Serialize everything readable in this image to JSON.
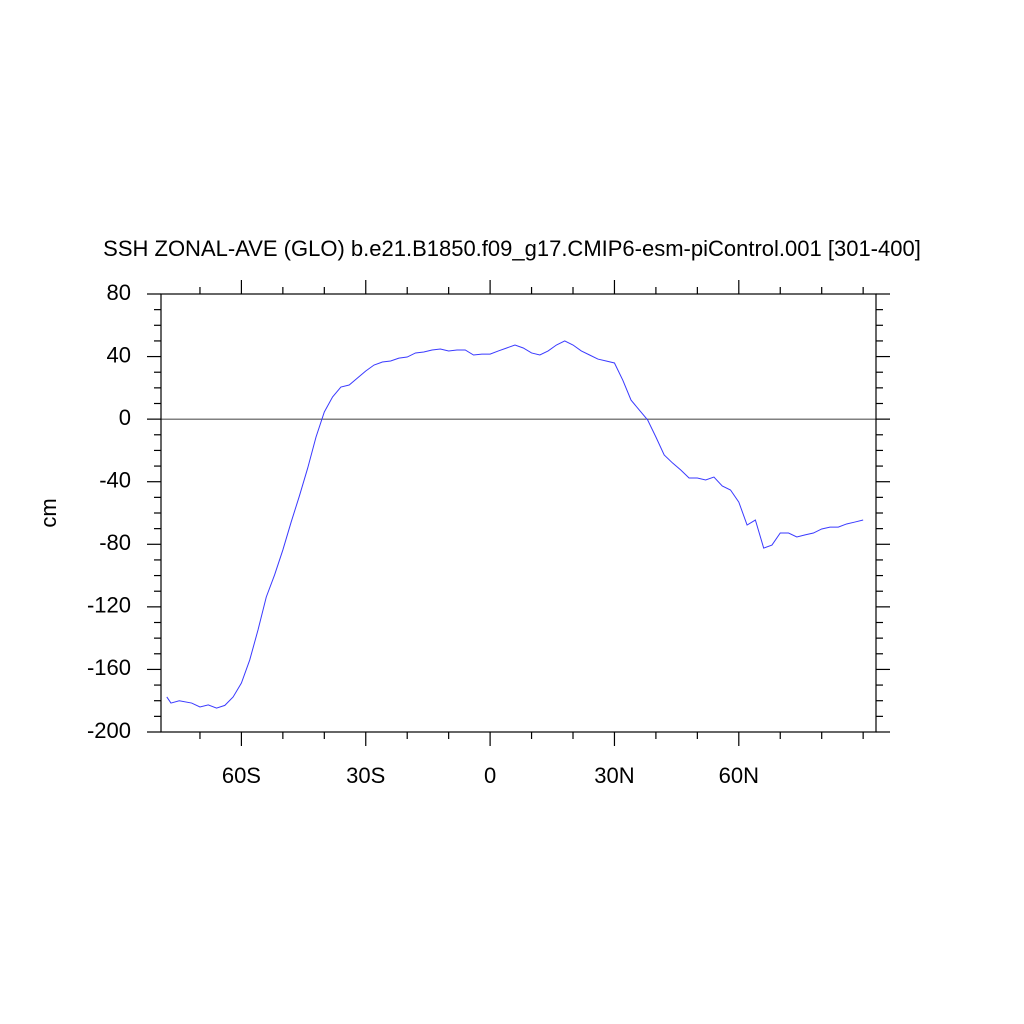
{
  "chart_data": {
    "type": "line",
    "title": "SSH ZONAL-AVE (GLO) b.e21.B1850.f09_g17.CMIP6-esm-piControl.001 [301-400]",
    "y_label": "cm",
    "x": [
      -78,
      -77,
      -75,
      -72,
      -70,
      -68,
      -66,
      -64,
      -62,
      -60,
      -58,
      -56,
      -54,
      -52,
      -50,
      -48,
      -46,
      -44,
      -42,
      -40,
      -38,
      -36,
      -34,
      -32,
      -30,
      -28,
      -26,
      -24,
      -22,
      -20,
      -18,
      -16,
      -14,
      -12,
      -10,
      -8,
      -6,
      -4,
      -2,
      0,
      2,
      4,
      6,
      8,
      10,
      12,
      14,
      16,
      18,
      20,
      22,
      24,
      26,
      28,
      30,
      32,
      34,
      36,
      38,
      40,
      42,
      44,
      46,
      48,
      50,
      52,
      54,
      56,
      58,
      60,
      62,
      64,
      66,
      68,
      70,
      72,
      74,
      76,
      78,
      80,
      82,
      84,
      86,
      88,
      90
    ],
    "series": [
      {
        "color": "#3a3aff",
        "values": [
          -177.6,
          -181.5,
          -180,
          -181.5,
          -184,
          -182.7,
          -184.7,
          -183,
          -177.6,
          -168.7,
          -154,
          -134.8,
          -113.7,
          -99.6,
          -83.6,
          -65.8,
          -49,
          -31.2,
          -11.4,
          4.6,
          14.2,
          20.5,
          21.8,
          26.3,
          30.8,
          34.6,
          36.5,
          37.2,
          39,
          39.7,
          42.3,
          42.9,
          44.2,
          44.8,
          43.6,
          44.2,
          44.2,
          41,
          41.6,
          41.6,
          43.6,
          45.5,
          47.4,
          45.5,
          42.3,
          41,
          43.6,
          47.4,
          50,
          47.4,
          43.6,
          41,
          38.4,
          37.2,
          35.9,
          25,
          12.2,
          5.8,
          -0.5,
          -11.4,
          -22.9,
          -28,
          -32.5,
          -37.6,
          -37.6,
          -38.9,
          -37,
          -42.7,
          -45.3,
          -53,
          -67.7,
          -64.5,
          -82.4,
          -80.5,
          -72.8,
          -72.8,
          -75.3,
          -74,
          -72.8,
          -70.2,
          -69,
          -69,
          -67,
          -65.8,
          -64.5
        ]
      }
    ],
    "xlim": [
      -79.4,
      93.1
    ],
    "ylim": [
      -200,
      80
    ],
    "xticks": [
      {
        "value": -60,
        "label": "60S"
      },
      {
        "value": -30,
        "label": "30S"
      },
      0,
      {
        "value": 30,
        "label": "30N"
      },
      {
        "value": 60,
        "label": "60N"
      }
    ],
    "yticks": [
      -200,
      -160,
      -120,
      -80,
      -40,
      0,
      40,
      80
    ],
    "xminorticks": [
      -70,
      -50,
      -40,
      -20,
      -10,
      10,
      20,
      40,
      50,
      70,
      80,
      90
    ],
    "yminorticks": [
      -190,
      -180,
      -170,
      -150,
      -140,
      -130,
      -110,
      -100,
      -90,
      -70,
      -60,
      -50,
      -30,
      -20,
      -10,
      10,
      20,
      30,
      50,
      60,
      70
    ],
    "reference_line": 0
  }
}
